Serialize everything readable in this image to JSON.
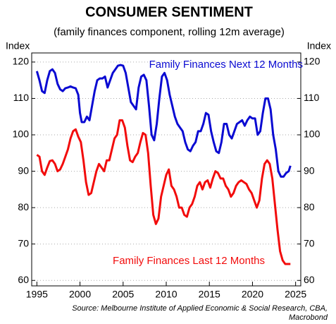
{
  "chart_data": {
    "type": "line",
    "title": "CONSUMER SENTIMENT",
    "subtitle": "(family finances component, rolling 12m average)",
    "y_label": "Index",
    "y2_label": "Index",
    "source": [
      "Source: Melbourne Institute of Applied Economic & Social Research, CBA,",
      "Macrobond"
    ],
    "xlim": [
      1994.4,
      2025.6
    ],
    "xticks": [
      1995,
      2000,
      2005,
      2010,
      2015,
      2020,
      2025
    ],
    "ylim": [
      58.5,
      122.5
    ],
    "yticks": [
      60,
      70,
      80,
      90,
      100,
      110,
      120
    ],
    "y2lim": [
      58.5,
      122.5
    ],
    "y2ticks": [
      60,
      70,
      80,
      90,
      100,
      110,
      120
    ],
    "grid": true,
    "series": [
      {
        "name": "Family Finances Next 12 Months",
        "color": "#0a0ad2",
        "x": [
          1995.0,
          1995.3,
          1995.6,
          1995.9,
          1996.2,
          1996.5,
          1996.8,
          1997.1,
          1997.4,
          1997.7,
          1998.0,
          1998.3,
          1998.6,
          1998.9,
          1999.2,
          1999.5,
          1999.8,
          2000.0,
          2000.2,
          2000.5,
          2000.8,
          2001.1,
          2001.4,
          2001.7,
          2002.0,
          2002.3,
          2002.6,
          2002.9,
          2003.2,
          2003.5,
          2003.8,
          2004.1,
          2004.4,
          2004.7,
          2005.0,
          2005.3,
          2005.6,
          2005.9,
          2006.2,
          2006.5,
          2006.8,
          2007.1,
          2007.4,
          2007.7,
          2008.0,
          2008.3,
          2008.6,
          2008.9,
          2009.2,
          2009.5,
          2009.8,
          2010.1,
          2010.4,
          2010.7,
          2011.0,
          2011.3,
          2011.6,
          2011.9,
          2012.2,
          2012.5,
          2012.8,
          2013.1,
          2013.4,
          2013.7,
          2014.0,
          2014.3,
          2014.6,
          2014.9,
          2015.2,
          2015.5,
          2015.8,
          2016.1,
          2016.4,
          2016.7,
          2017.0,
          2017.3,
          2017.6,
          2017.9,
          2018.2,
          2018.5,
          2018.8,
          2019.1,
          2019.4,
          2019.7,
          2020.0,
          2020.3,
          2020.6,
          2020.9,
          2021.2,
          2021.5,
          2021.8,
          2022.1,
          2022.4,
          2022.7,
          2023.0,
          2023.3,
          2023.6,
          2023.9,
          2024.2,
          2024.4
        ],
        "values": [
          117.5,
          115,
          112,
          111.5,
          115,
          117.5,
          118,
          117,
          114,
          112.5,
          112,
          112.8,
          113,
          113.3,
          113,
          112.8,
          111,
          106,
          103.5,
          103.5,
          105,
          104,
          108,
          112,
          115,
          115.5,
          115.5,
          116,
          113,
          115,
          117,
          118,
          119,
          119.2,
          119,
          117,
          113,
          109,
          108,
          107,
          113,
          116,
          116.5,
          115,
          108,
          100,
          98.5,
          103,
          110,
          116,
          117,
          115,
          111,
          108,
          105,
          103,
          102,
          101,
          98,
          96,
          95.5,
          97,
          98,
          101,
          101,
          103,
          106,
          105.5,
          101,
          98,
          95.5,
          95,
          98,
          103,
          103,
          100,
          99,
          101,
          103,
          103.5,
          104,
          102.5,
          104,
          105,
          104.5,
          104.5,
          100,
          101,
          106,
          110,
          110,
          107,
          100,
          96,
          90,
          88.5,
          88.5,
          89.5,
          90,
          91.5
        ]
      },
      {
        "name": "Family Finances Last 12 Months",
        "color": "#f20c0c",
        "x": [
          1995.0,
          1995.3,
          1995.6,
          1995.9,
          1996.2,
          1996.5,
          1996.8,
          1997.1,
          1997.4,
          1997.7,
          1998.0,
          1998.3,
          1998.6,
          1998.9,
          1999.2,
          1999.5,
          1999.8,
          2000.1,
          2000.4,
          2000.7,
          2001.0,
          2001.3,
          2001.6,
          2001.9,
          2002.2,
          2002.5,
          2002.8,
          2003.1,
          2003.4,
          2003.7,
          2004.0,
          2004.3,
          2004.6,
          2004.9,
          2005.2,
          2005.5,
          2005.8,
          2006.1,
          2006.4,
          2006.7,
          2007.0,
          2007.3,
          2007.6,
          2007.9,
          2008.2,
          2008.5,
          2008.8,
          2009.1,
          2009.4,
          2009.7,
          2010.0,
          2010.3,
          2010.6,
          2010.9,
          2011.2,
          2011.5,
          2011.8,
          2012.1,
          2012.4,
          2012.7,
          2013.0,
          2013.3,
          2013.6,
          2013.9,
          2014.2,
          2014.5,
          2014.8,
          2015.1,
          2015.4,
          2015.7,
          2016.0,
          2016.3,
          2016.6,
          2016.9,
          2017.2,
          2017.5,
          2017.8,
          2018.1,
          2018.4,
          2018.7,
          2019.0,
          2019.3,
          2019.6,
          2019.9,
          2020.2,
          2020.5,
          2020.8,
          2021.1,
          2021.4,
          2021.7,
          2022.0,
          2022.3,
          2022.6,
          2022.9,
          2023.2,
          2023.5,
          2023.8,
          2024.1,
          2024.4
        ],
        "values": [
          94.5,
          94,
          90,
          89,
          91,
          92.8,
          93,
          92,
          90,
          90.5,
          92,
          94,
          96,
          99,
          101,
          101.5,
          99.5,
          98,
          93,
          87,
          83.5,
          84,
          87,
          90,
          92,
          91,
          90,
          93,
          93,
          96,
          99,
          100,
          104,
          104,
          102,
          97,
          93,
          92.5,
          94,
          95,
          98,
          100.5,
          100,
          95,
          86,
          78,
          75.5,
          77,
          83,
          86,
          89,
          90.5,
          86,
          85,
          83,
          80,
          80,
          78,
          77.5,
          80,
          81,
          83,
          86,
          87,
          85,
          87,
          87.5,
          85.5,
          88,
          90,
          89.5,
          88,
          88,
          86,
          85,
          83,
          84,
          86,
          87,
          87.5,
          87,
          86.5,
          85,
          84,
          82,
          80,
          82,
          88,
          92,
          93,
          92,
          88,
          81,
          74,
          68,
          65.5,
          64.5,
          64.5,
          64.5
        ]
      }
    ]
  }
}
